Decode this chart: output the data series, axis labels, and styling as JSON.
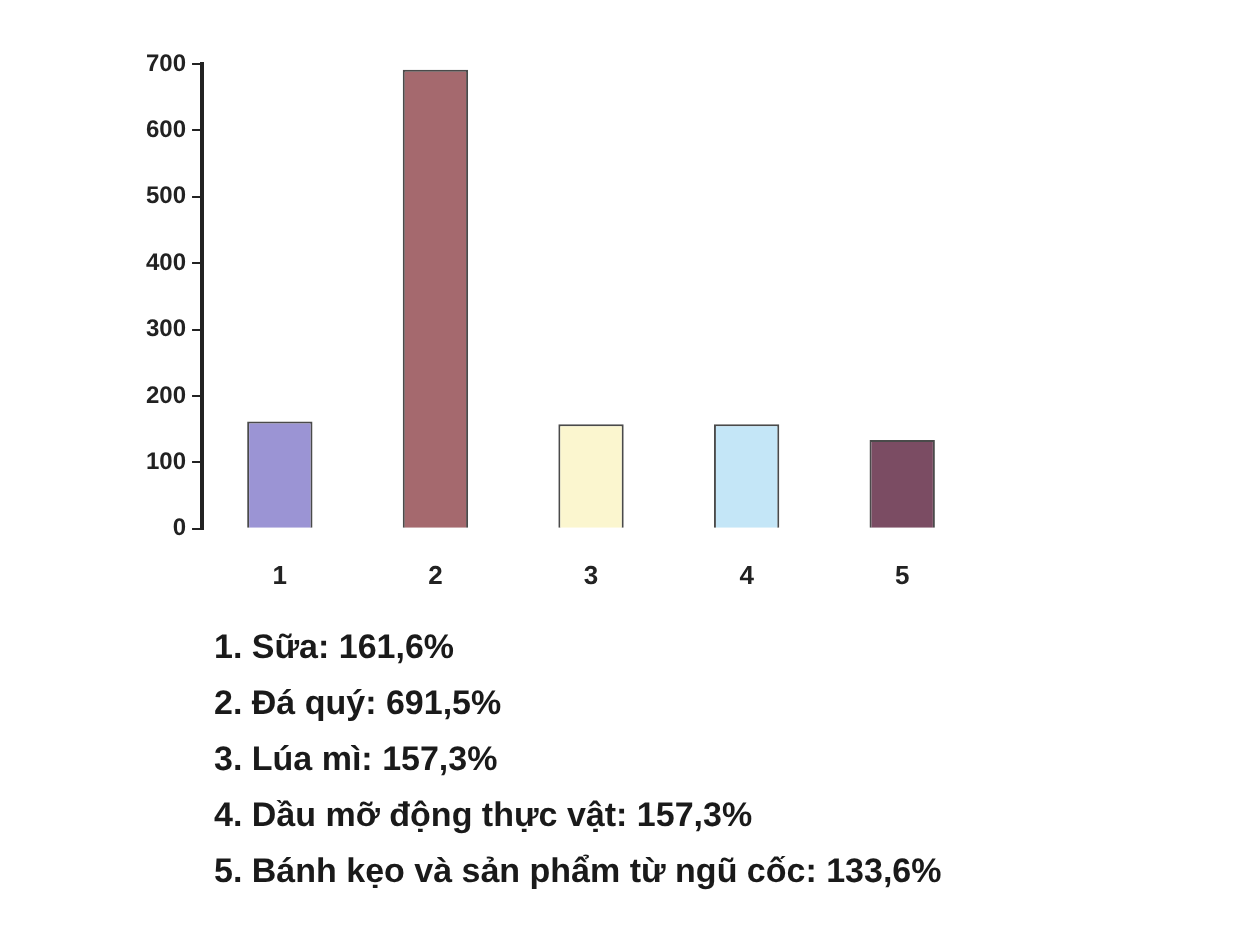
{
  "chart_data": {
    "type": "bar",
    "categories": [
      "1",
      "2",
      "3",
      "4",
      "5"
    ],
    "values": [
      161.6,
      691.5,
      157.3,
      157.3,
      133.6
    ],
    "colors": [
      "#9b94d4",
      "#a5696e",
      "#fbf6cf",
      "#c4e6f7",
      "#7b4c63"
    ],
    "ylim": [
      0,
      700
    ],
    "yticks": [
      0,
      100,
      200,
      300,
      400,
      500,
      600,
      700
    ],
    "grid": false,
    "annotations": [
      "1. Sữa: 161,6%",
      "2. Đá quý: 691,5%",
      "3. Lúa mì: 157,3%",
      "4. Dầu mỡ động thực vật: 157,3%",
      "5. Bánh kẹo và sản phẩm từ ngũ cốc: 133,6%"
    ]
  }
}
